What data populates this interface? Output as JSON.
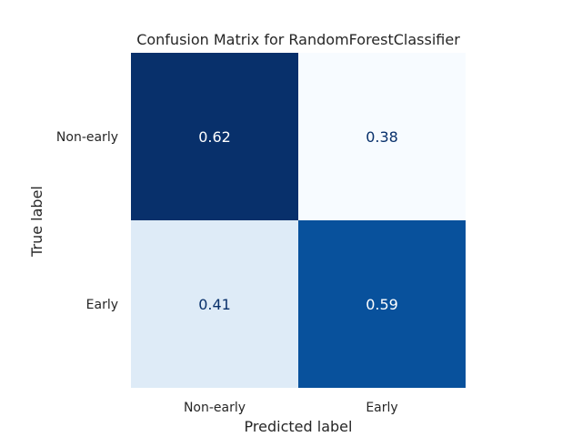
{
  "chart_data": {
    "type": "heatmap",
    "title": "Confusion Matrix for RandomForestClassifier",
    "xlabel": "Predicted label",
    "ylabel": "True label",
    "x_categories": [
      "Non-early",
      "Early"
    ],
    "y_categories": [
      "Non-early",
      "Early"
    ],
    "values": [
      [
        0.62,
        0.38
      ],
      [
        0.41,
        0.59
      ]
    ],
    "value_labels": [
      [
        "0.62",
        "0.38"
      ],
      [
        "0.41",
        "0.59"
      ]
    ],
    "colormap": "Blues",
    "cell_colors": [
      [
        "#08306b",
        "#f7fbff"
      ],
      [
        "#deebf7",
        "#08519c"
      ]
    ],
    "grid": false,
    "colorbar": false
  }
}
